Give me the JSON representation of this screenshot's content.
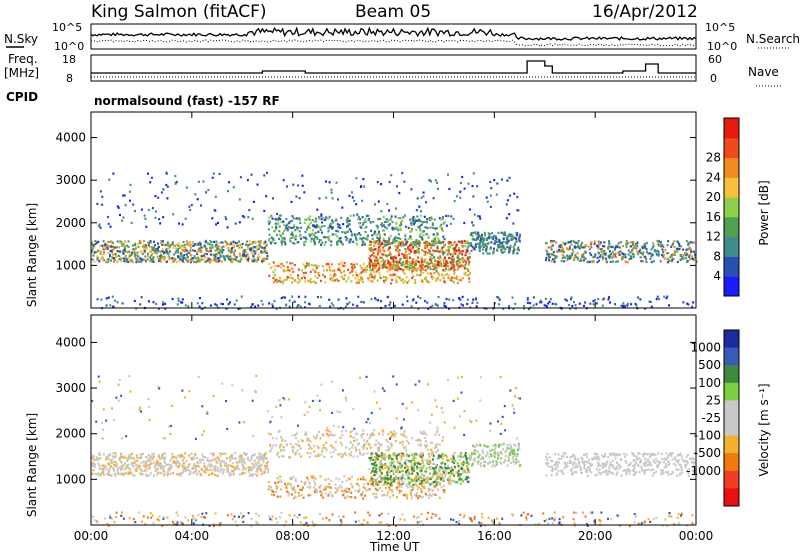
{
  "header": {
    "station": "King Salmon (fitACF)",
    "beam": "Beam 05",
    "date": "16/Apr/2012"
  },
  "noise_panel": {
    "left_label": "N.Sky",
    "right_label": "N.Search",
    "left_ticks": [
      "10^5",
      "10^0"
    ],
    "right_ticks": [
      "10^5",
      "10^0"
    ]
  },
  "freq_panel": {
    "left_label_1": "Freq.",
    "left_label_2": "[MHz]",
    "right_label": "Nave",
    "left_ticks": [
      "18",
      "8"
    ],
    "right_ticks": [
      "60",
      "0"
    ]
  },
  "cpid_panel": {
    "label": "CPID",
    "text": "normalsound (fast) -157 RF"
  },
  "colors": {
    "power_scale": [
      "#1a1aff",
      "#2a4fb0",
      "#3f8c8c",
      "#4fa04f",
      "#8fd04a",
      "#f5c23a",
      "#f28a1e",
      "#ee4a1a",
      "#e81a10"
    ],
    "velocity_scale": [
      "#1a2aa0",
      "#3a5ab8",
      "#3f8a3f",
      "#7cd040",
      "#c8c8c8",
      "#c8c8c8",
      "#f5b030",
      "#f07a10",
      "#ee4020",
      "#e81010"
    ]
  },
  "chart_data": [
    {
      "type": "heatmap",
      "panel": "power",
      "ylabel": "Slant Range [km]",
      "y_ticks": [
        "1000",
        "2000",
        "3000",
        "4000"
      ],
      "ylim": [
        0,
        4600
      ],
      "xlim": [
        0,
        24
      ],
      "colorbar_label": "Power [dB]",
      "colorbar_ticks": [
        "4",
        "8",
        "12",
        "16",
        "20",
        "24",
        "28"
      ],
      "colorbar_range": [
        0,
        32
      ]
    },
    {
      "type": "heatmap",
      "panel": "velocity",
      "ylabel": "Slant Range [km]",
      "y_ticks": [
        "1000",
        "2000",
        "3000",
        "4000"
      ],
      "ylim": [
        0,
        4600
      ],
      "xlim": [
        0,
        24
      ],
      "colorbar_label": "Velocity [m s⁻¹]",
      "colorbar_ticks": [
        "1000",
        "500",
        "100",
        "25",
        "-25",
        "-100",
        "-500",
        "-1000"
      ]
    }
  ],
  "x_axis": {
    "ticks": [
      "00:00",
      "04:00",
      "08:00",
      "12:00",
      "16:00",
      "20:00",
      "00:00"
    ],
    "label": "Time UT"
  }
}
